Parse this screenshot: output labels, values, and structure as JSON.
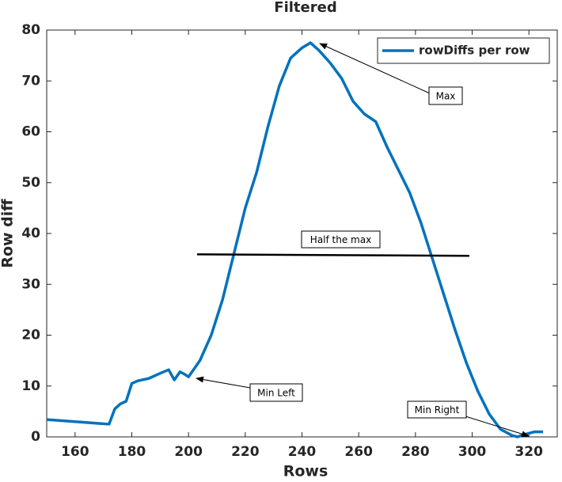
{
  "chart_data": {
    "type": "line",
    "title": "Filtered",
    "x_label": "Rows",
    "y_label": "Row diff",
    "x": [
      150,
      160,
      172,
      174,
      176,
      178,
      180,
      182,
      186,
      190,
      193,
      195,
      197,
      199,
      200,
      204,
      208,
      212,
      216,
      220,
      224,
      228,
      232,
      236,
      240,
      243,
      246,
      250,
      254,
      258,
      262,
      266,
      270,
      274,
      278,
      282,
      286,
      290,
      294,
      298,
      302,
      306,
      310,
      314,
      316,
      318,
      322,
      325
    ],
    "series": [
      {
        "name": "rowDiffs per row",
        "color": "#0072bd",
        "values": [
          3.4,
          3.0,
          2.5,
          5.5,
          6.5,
          7,
          10.5,
          11,
          11.5,
          12.5,
          13.2,
          11.2,
          12.8,
          12.2,
          11.8,
          15,
          20,
          27,
          36,
          45,
          52,
          61,
          69,
          74.5,
          76.5,
          77.5,
          76,
          73.5,
          70.5,
          66,
          63.5,
          62,
          57,
          52.5,
          48,
          42,
          35,
          28,
          21,
          14.5,
          9,
          4.5,
          1.5,
          0.3,
          0,
          0.4,
          1,
          1
        ]
      }
    ],
    "reference_line": {
      "x": [
        203,
        299
      ],
      "y": [
        35.9,
        35.6
      ],
      "color": "#000000"
    },
    "annotations": [
      {
        "text": "Max"
      },
      {
        "text": "Half the max"
      },
      {
        "text": "Min Left"
      },
      {
        "text": "Min Right"
      }
    ],
    "xlim": [
      150,
      330
    ],
    "ylim": [
      0,
      80
    ],
    "xticks": [
      160,
      180,
      200,
      220,
      240,
      260,
      280,
      300,
      320
    ],
    "yticks": [
      0,
      10,
      20,
      30,
      40,
      50,
      60,
      70,
      80
    ],
    "legend": "northeast"
  }
}
